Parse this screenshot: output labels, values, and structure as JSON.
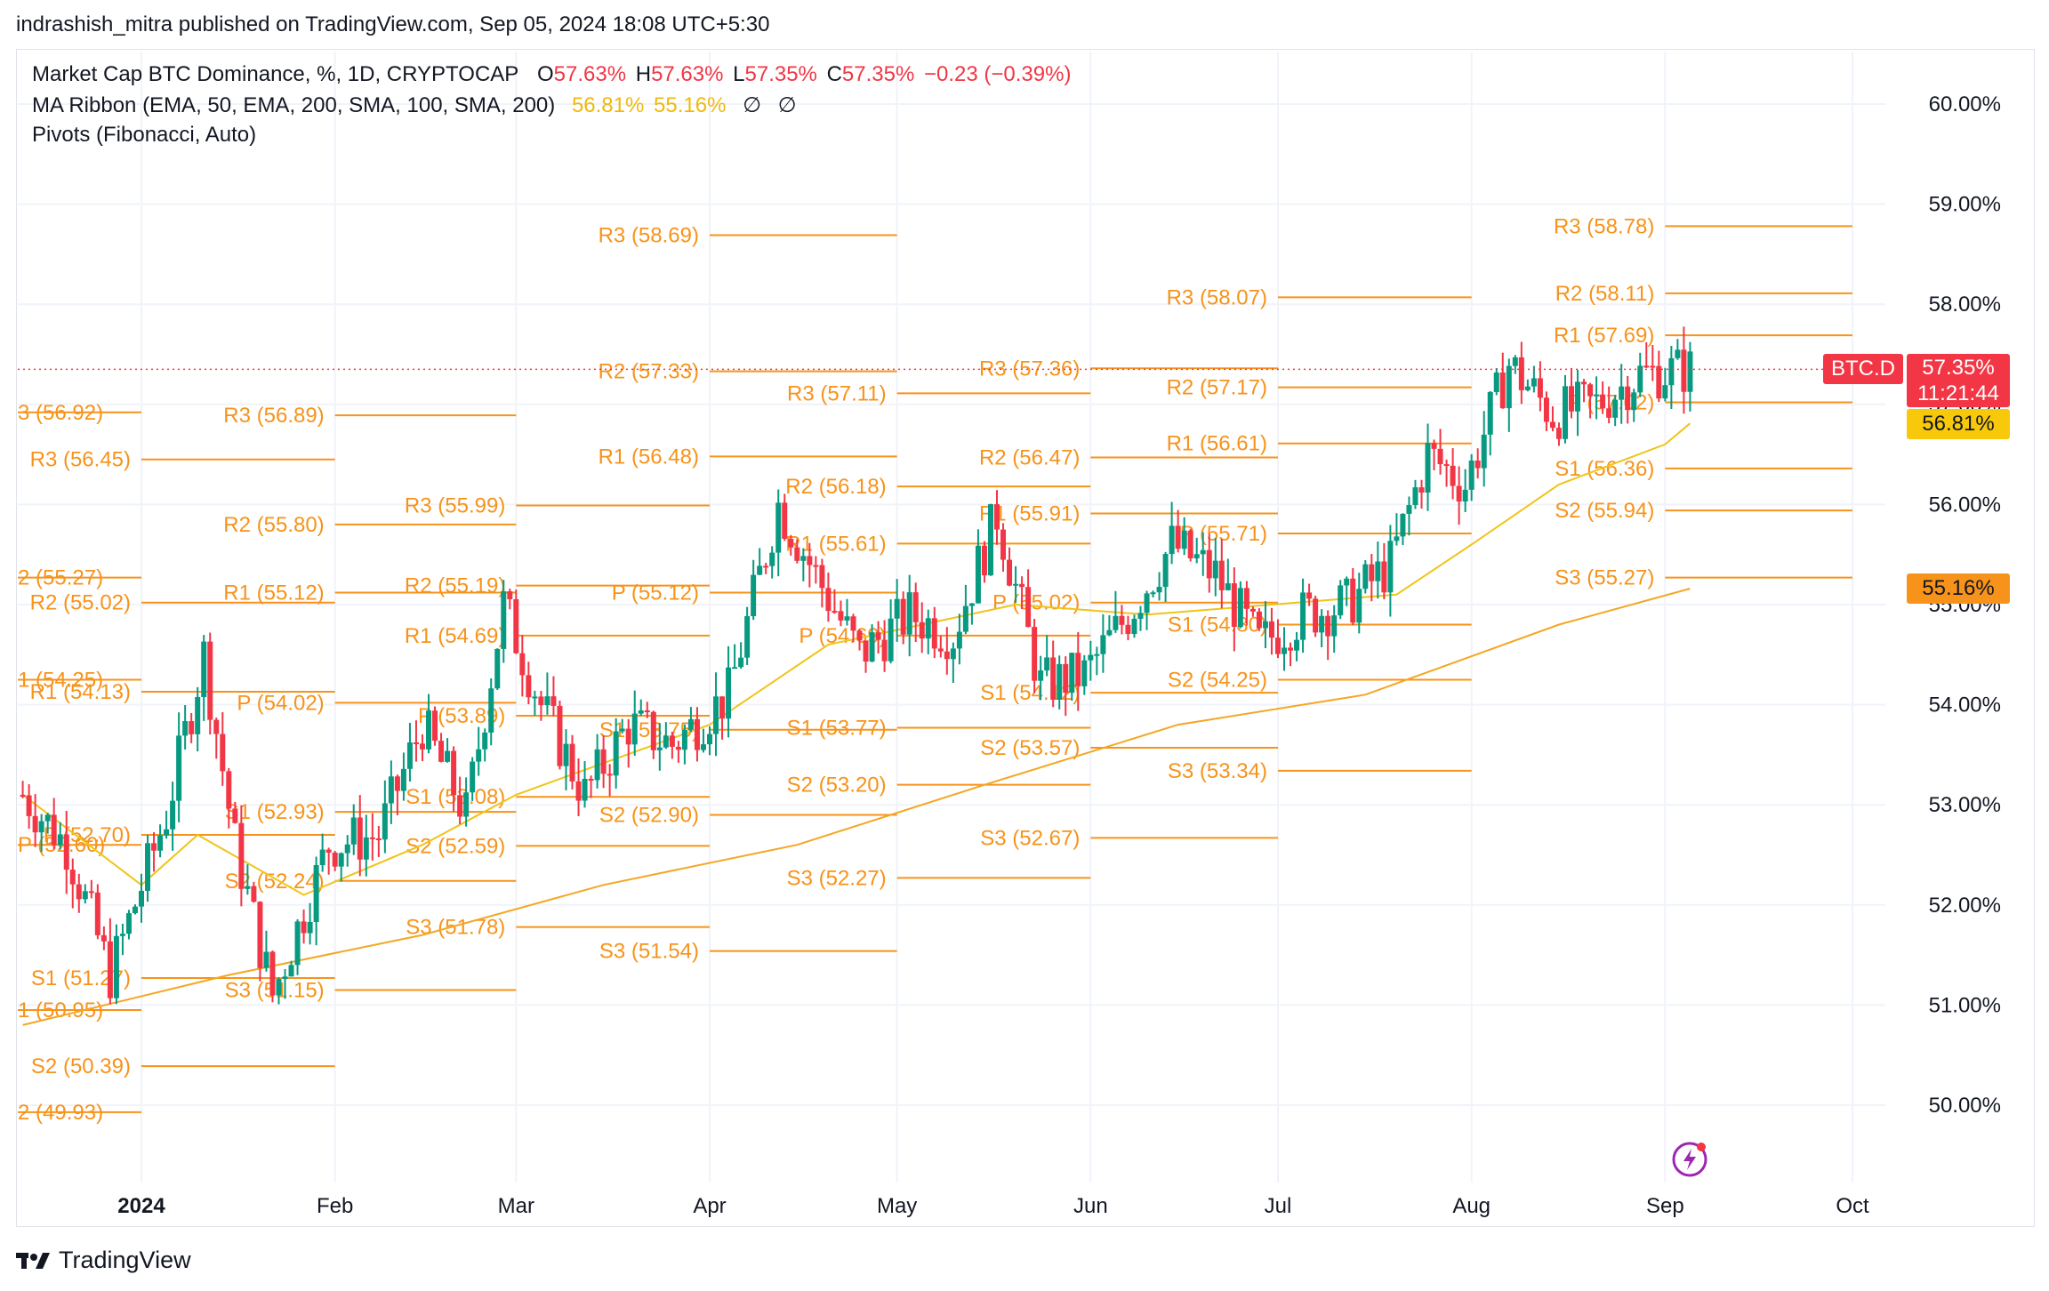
{
  "caption": "indrashish_mitra published on TradingView.com, Sep 05, 2024 18:08 UTC+5:30",
  "brand": "TradingView",
  "legend": {
    "symbol_line": "Market Cap BTC Dominance, %, 1D, CRYPTOCAP",
    "o_label": "O",
    "o_value": "57.63%",
    "h_label": "H",
    "h_value": "57.63%",
    "l_label": "L",
    "l_value": "57.35%",
    "c_label": "C",
    "c_value": "57.35%",
    "change": "−0.23 (−0.39%)",
    "ma_line": "MA Ribbon (EMA, 50, EMA, 200, SMA, 100, SMA, 200)",
    "ma1": "56.81%",
    "ma2": "55.16%",
    "ma3": "∅",
    "ma4": "∅",
    "pivots_line": "Pivots (Fibonacci, Auto)"
  },
  "badges": {
    "symbol": "BTC.D",
    "price": "57.35%",
    "countdown": "11:21:44",
    "ema50": "56.81%",
    "ema200": "55.16%"
  },
  "colors": {
    "up": "#089981",
    "down": "#f23645",
    "pivot": "#f7931a",
    "ema50": "#f0c419",
    "ema200": "#f5a623",
    "grid": "#f0f3fa",
    "ribbon_gold": "#f0b90b"
  },
  "chart_data": {
    "type": "candlestick",
    "title": "Market Cap BTC Dominance, %, 1D, CRYPTOCAP",
    "y_ticks": [
      "50.00%",
      "51.00%",
      "52.00%",
      "53.00%",
      "54.00%",
      "55.00%",
      "56.00%",
      "57.00%",
      "58.00%",
      "59.00%",
      "60.00%"
    ],
    "x_ticks": [
      "2024",
      "Feb",
      "Mar",
      "Apr",
      "May",
      "Jun",
      "Jul",
      "Aug",
      "Sep",
      "Oct"
    ],
    "ylim": [
      48.7,
      60.6
    ],
    "x_range": [
      "2023-12-13",
      "2024-10-15"
    ],
    "last_close": 57.35,
    "ema50_last": 56.81,
    "ema200_last": 55.16,
    "monthly_closes": [
      {
        "date": "2023-12-13",
        "close": 53.1
      },
      {
        "date": "2023-12-20",
        "close": 52.6
      },
      {
        "date": "2023-12-27",
        "close": 51.3
      },
      {
        "date": "2024-01-05",
        "close": 52.9
      },
      {
        "date": "2024-01-11",
        "close": 54.5
      },
      {
        "date": "2024-01-16",
        "close": 52.6
      },
      {
        "date": "2024-01-22",
        "close": 51.1
      },
      {
        "date": "2024-01-31",
        "close": 52.6
      },
      {
        "date": "2024-02-08",
        "close": 52.7
      },
      {
        "date": "2024-02-15",
        "close": 53.8
      },
      {
        "date": "2024-02-22",
        "close": 52.9
      },
      {
        "date": "2024-02-28",
        "close": 55.0
      },
      {
        "date": "2024-03-05",
        "close": 54.0
      },
      {
        "date": "2024-03-12",
        "close": 53.1
      },
      {
        "date": "2024-03-19",
        "close": 53.8
      },
      {
        "date": "2024-03-26",
        "close": 53.6
      },
      {
        "date": "2024-04-04",
        "close": 54.1
      },
      {
        "date": "2024-04-12",
        "close": 56.0
      },
      {
        "date": "2024-04-18",
        "close": 55.3
      },
      {
        "date": "2024-04-25",
        "close": 54.5
      },
      {
        "date": "2024-05-03",
        "close": 54.9
      },
      {
        "date": "2024-05-10",
        "close": 54.7
      },
      {
        "date": "2024-05-17",
        "close": 55.9
      },
      {
        "date": "2024-05-24",
        "close": 54.2
      },
      {
        "date": "2024-05-31",
        "close": 54.3
      },
      {
        "date": "2024-06-07",
        "close": 54.9
      },
      {
        "date": "2024-06-14",
        "close": 55.6
      },
      {
        "date": "2024-06-21",
        "close": 55.3
      },
      {
        "date": "2024-06-28",
        "close": 54.6
      },
      {
        "date": "2024-07-05",
        "close": 54.9
      },
      {
        "date": "2024-07-12",
        "close": 55.0
      },
      {
        "date": "2024-07-19",
        "close": 55.4
      },
      {
        "date": "2024-07-25",
        "close": 56.5
      },
      {
        "date": "2024-07-31",
        "close": 56.2
      },
      {
        "date": "2024-08-07",
        "close": 57.4
      },
      {
        "date": "2024-08-14",
        "close": 56.9
      },
      {
        "date": "2024-08-21",
        "close": 57.0
      },
      {
        "date": "2024-08-28",
        "close": 57.3
      },
      {
        "date": "2024-09-05",
        "close": 57.35
      }
    ],
    "ema50": [
      {
        "date": "2023-12-13",
        "value": 53.1
      },
      {
        "date": "2024-01-01",
        "value": 52.2
      },
      {
        "date": "2024-01-10",
        "value": 52.7
      },
      {
        "date": "2024-01-27",
        "value": 52.1
      },
      {
        "date": "2024-02-15",
        "value": 52.6
      },
      {
        "date": "2024-03-01",
        "value": 53.1
      },
      {
        "date": "2024-04-01",
        "value": 53.8
      },
      {
        "date": "2024-04-20",
        "value": 54.6
      },
      {
        "date": "2024-05-20",
        "value": 55.0
      },
      {
        "date": "2024-06-10",
        "value": 54.9
      },
      {
        "date": "2024-06-30",
        "value": 55.0
      },
      {
        "date": "2024-07-20",
        "value": 55.1
      },
      {
        "date": "2024-08-01",
        "value": 55.6
      },
      {
        "date": "2024-08-15",
        "value": 56.2
      },
      {
        "date": "2024-09-01",
        "value": 56.6
      },
      {
        "date": "2024-09-05",
        "value": 56.81
      }
    ],
    "ema200": [
      {
        "date": "2023-12-13",
        "value": 50.8
      },
      {
        "date": "2024-01-15",
        "value": 51.3
      },
      {
        "date": "2024-02-15",
        "value": 51.7
      },
      {
        "date": "2024-03-15",
        "value": 52.2
      },
      {
        "date": "2024-04-15",
        "value": 52.6
      },
      {
        "date": "2024-05-15",
        "value": 53.2
      },
      {
        "date": "2024-06-15",
        "value": 53.8
      },
      {
        "date": "2024-07-15",
        "value": 54.1
      },
      {
        "date": "2024-08-15",
        "value": 54.8
      },
      {
        "date": "2024-09-05",
        "value": 55.16
      }
    ],
    "pivots": [
      {
        "period_start": "2023-12-01",
        "period_end": "2024-01-01",
        "labels": [
          {
            "name": "3 (56.92)",
            "value": 56.92
          },
          {
            "name": "2 (55.27)",
            "value": 55.27
          },
          {
            "name": "1 (54.25)",
            "value": 54.25
          },
          {
            "name": "P (52.60)",
            "value": 52.6
          },
          {
            "name": "1 (50.95)",
            "value": 50.95
          },
          {
            "name": "2 (49.93)",
            "value": 49.93
          }
        ]
      },
      {
        "period_start": "2024-01-01",
        "period_end": "2024-02-01",
        "labels": [
          {
            "name": "R3 (56.45)",
            "value": 56.45
          },
          {
            "name": "R2 (55.02)",
            "value": 55.02
          },
          {
            "name": "R1 (54.13)",
            "value": 54.13
          },
          {
            "name": "P (52.70)",
            "value": 52.7
          },
          {
            "name": "S1 (51.27)",
            "value": 51.27
          },
          {
            "name": "S2 (50.39)",
            "value": 50.39
          }
        ]
      },
      {
        "period_start": "2024-02-01",
        "period_end": "2024-03-01",
        "labels": [
          {
            "name": "R3 (56.89)",
            "value": 56.89
          },
          {
            "name": "R2 (55.80)",
            "value": 55.8
          },
          {
            "name": "R1 (55.12)",
            "value": 55.12
          },
          {
            "name": "P (54.02)",
            "value": 54.02
          },
          {
            "name": "S1 (52.93)",
            "value": 52.93
          },
          {
            "name": "S2 (52.24)",
            "value": 52.24
          },
          {
            "name": "S3 (51.15)",
            "value": 51.15
          }
        ]
      },
      {
        "period_start": "2024-03-01",
        "period_end": "2024-04-01",
        "labels": [
          {
            "name": "R3 (55.99)",
            "value": 55.99
          },
          {
            "name": "R2 (55.19)",
            "value": 55.19
          },
          {
            "name": "R1 (54.69)",
            "value": 54.69
          },
          {
            "name": "P (53.89)",
            "value": 53.89
          },
          {
            "name": "S1 (53.08)",
            "value": 53.08
          },
          {
            "name": "S2 (52.59)",
            "value": 52.59
          },
          {
            "name": "S3 (51.78)",
            "value": 51.78
          }
        ]
      },
      {
        "period_start": "2024-04-01",
        "period_end": "2024-05-01",
        "labels": [
          {
            "name": "R3 (58.69)",
            "value": 58.69
          },
          {
            "name": "R2 (57.33)",
            "value": 57.33
          },
          {
            "name": "R1 (56.48)",
            "value": 56.48
          },
          {
            "name": "P (55.12)",
            "value": 55.12
          },
          {
            "name": "S1 (53.75)",
            "value": 53.75
          },
          {
            "name": "S2 (52.90)",
            "value": 52.9
          },
          {
            "name": "S3 (51.54)",
            "value": 51.54
          }
        ]
      },
      {
        "period_start": "2024-05-01",
        "period_end": "2024-06-01",
        "labels": [
          {
            "name": "R3 (57.11)",
            "value": 57.11
          },
          {
            "name": "R2 (56.18)",
            "value": 56.18
          },
          {
            "name": "R1 (55.61)",
            "value": 55.61
          },
          {
            "name": "P (54.69)",
            "value": 54.69
          },
          {
            "name": "S1 (53.77)",
            "value": 53.77
          },
          {
            "name": "S2 (53.20)",
            "value": 53.2
          },
          {
            "name": "S3 (52.27)",
            "value": 52.27
          }
        ]
      },
      {
        "period_start": "2024-06-01",
        "period_end": "2024-07-01",
        "labels": [
          {
            "name": "R3 (57.36)",
            "value": 57.36
          },
          {
            "name": "R2 (56.47)",
            "value": 56.47
          },
          {
            "name": "R1 (55.91)",
            "value": 55.91
          },
          {
            "name": "P (55.02)",
            "value": 55.02
          },
          {
            "name": "S1 (54.12)",
            "value": 54.12
          },
          {
            "name": "S2 (53.57)",
            "value": 53.57
          },
          {
            "name": "S3 (52.67)",
            "value": 52.67
          }
        ]
      },
      {
        "period_start": "2024-07-01",
        "period_end": "2024-08-01",
        "labels": [
          {
            "name": "R3 (58.07)",
            "value": 58.07
          },
          {
            "name": "R2 (57.17)",
            "value": 57.17
          },
          {
            "name": "R1 (56.61)",
            "value": 56.61
          },
          {
            "name": "P (55.71)",
            "value": 55.71
          },
          {
            "name": "S1 (54.80)",
            "value": 54.8
          },
          {
            "name": "S2 (54.25)",
            "value": 54.25
          },
          {
            "name": "S3 (53.34)",
            "value": 53.34
          }
        ]
      },
      {
        "period_start": "2024-09-01",
        "period_end": "2024-10-01",
        "labels": [
          {
            "name": "R3 (58.78)",
            "value": 58.78
          },
          {
            "name": "R2 (58.11)",
            "value": 58.11
          },
          {
            "name": "R1 (57.69)",
            "value": 57.69
          },
          {
            "name": "P (57.02)",
            "value": 57.02
          },
          {
            "name": "S1 (56.36)",
            "value": 56.36
          },
          {
            "name": "S2 (55.94)",
            "value": 55.94
          },
          {
            "name": "S3 (55.27)",
            "value": 55.27
          }
        ]
      }
    ]
  }
}
